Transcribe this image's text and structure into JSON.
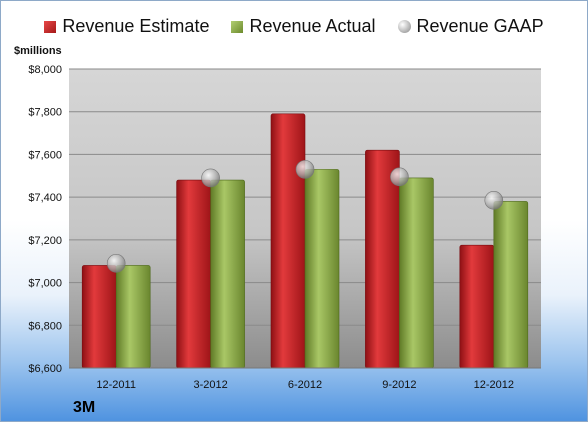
{
  "legend": {
    "estimate": "Revenue Estimate",
    "actual": "Revenue Actual",
    "gaap": "Revenue GAAP"
  },
  "unit_label": "$millions",
  "company": "3M",
  "colors": {
    "estimate": "#c0191e",
    "actual": "#8fad4a",
    "gaap": "#b8b8b8"
  },
  "chart_data": {
    "type": "bar",
    "categories": [
      "12-2011",
      "3-2012",
      "6-2012",
      "9-2012",
      "12-2012"
    ],
    "series": [
      {
        "name": "Revenue Estimate",
        "values": [
          7080,
          7480,
          7790,
          7620,
          7175
        ]
      },
      {
        "name": "Revenue Actual",
        "values": [
          7080,
          7480,
          7530,
          7490,
          7380
        ]
      },
      {
        "name": "Revenue GAAP",
        "values": [
          7090,
          7490,
          7530,
          7495,
          7385
        ]
      }
    ],
    "ylabel": "$millions",
    "ylim": [
      6600,
      8000
    ],
    "yticks": [
      "$6,600",
      "$6,800",
      "$7,000",
      "$7,200",
      "$7,400",
      "$7,600",
      "$7,800",
      "$8,000"
    ],
    "ytick_values": [
      6600,
      6800,
      7000,
      7200,
      7400,
      7600,
      7800,
      8000
    ],
    "grid": true,
    "legend_position": "top"
  }
}
